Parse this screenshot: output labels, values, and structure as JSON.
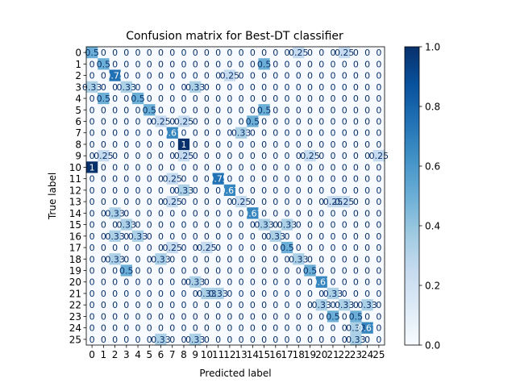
{
  "chart_data": {
    "type": "heatmap",
    "title": "Confusion matrix for Best-DT classifier",
    "xlabel": "Predicted label",
    "ylabel": "True label",
    "labels": [
      "0",
      "1",
      "2",
      "3",
      "4",
      "5",
      "6",
      "7",
      "8",
      "9",
      "10",
      "11",
      "12",
      "13",
      "14",
      "15",
      "16",
      "17",
      "18",
      "19",
      "20",
      "21",
      "22",
      "23",
      "24",
      "25"
    ],
    "colormap": "Blues",
    "colormap_low": "#f7fbff",
    "colormap_high": "#08306b",
    "vmin": 0.0,
    "vmax": 1.0,
    "colorbar_ticks": [
      "0.0",
      "0.2",
      "0.4",
      "0.6",
      "0.8",
      "1.0"
    ],
    "matrix": [
      [
        0.5,
        0,
        0,
        0,
        0,
        0,
        0,
        0,
        0,
        0,
        0,
        0,
        0,
        0,
        0,
        0,
        0,
        0,
        0.25,
        0,
        0,
        0,
        0.25,
        0,
        0,
        0
      ],
      [
        0,
        0.5,
        0,
        0,
        0,
        0,
        0,
        0,
        0,
        0,
        0,
        0,
        0,
        0,
        0,
        0.5,
        0,
        0,
        0,
        0,
        0,
        0,
        0,
        0,
        0,
        0
      ],
      [
        0,
        0,
        0.75,
        0,
        0,
        0,
        0,
        0,
        0,
        0,
        0,
        0,
        0.25,
        0,
        0,
        0,
        0,
        0,
        0,
        0,
        0,
        0,
        0,
        0,
        0,
        0
      ],
      [
        0.33,
        0,
        0,
        0.33,
        0,
        0,
        0,
        0,
        0,
        0.33,
        0,
        0,
        0,
        0,
        0,
        0,
        0,
        0,
        0,
        0,
        0,
        0,
        0,
        0,
        0,
        0
      ],
      [
        0,
        0.5,
        0,
        0,
        0.5,
        0,
        0,
        0,
        0,
        0,
        0,
        0,
        0,
        0,
        0,
        0,
        0,
        0,
        0,
        0,
        0,
        0,
        0,
        0,
        0,
        0
      ],
      [
        0,
        0,
        0,
        0,
        0,
        0.5,
        0,
        0,
        0,
        0,
        0,
        0,
        0,
        0,
        0,
        0.5,
        0,
        0,
        0,
        0,
        0,
        0,
        0,
        0,
        0,
        0
      ],
      [
        0,
        0,
        0,
        0,
        0,
        0,
        0.25,
        0,
        0.25,
        0,
        0,
        0,
        0,
        0,
        0.5,
        0,
        0,
        0,
        0,
        0,
        0,
        0,
        0,
        0,
        0,
        0
      ],
      [
        0,
        0,
        0,
        0,
        0,
        0,
        0,
        0.67,
        0,
        0,
        0,
        0,
        0,
        0.33,
        0,
        0,
        0,
        0,
        0,
        0,
        0,
        0,
        0,
        0,
        0,
        0
      ],
      [
        0,
        0,
        0,
        0,
        0,
        0,
        0,
        0,
        1,
        0,
        0,
        0,
        0,
        0,
        0,
        0,
        0,
        0,
        0,
        0,
        0,
        0,
        0,
        0,
        0,
        0
      ],
      [
        0,
        0.25,
        0,
        0,
        0,
        0,
        0,
        0,
        0.25,
        0,
        0,
        0,
        0,
        0,
        0,
        0,
        0,
        0,
        0,
        0.25,
        0,
        0,
        0,
        0,
        0,
        0.25
      ],
      [
        1,
        0,
        0,
        0,
        0,
        0,
        0,
        0,
        0,
        0,
        0,
        0,
        0,
        0,
        0,
        0,
        0,
        0,
        0,
        0,
        0,
        0,
        0,
        0,
        0,
        0
      ],
      [
        0,
        0,
        0,
        0,
        0,
        0,
        0,
        0.25,
        0,
        0,
        0,
        0.75,
        0,
        0,
        0,
        0,
        0,
        0,
        0,
        0,
        0,
        0,
        0,
        0,
        0,
        0
      ],
      [
        0,
        0,
        0,
        0,
        0,
        0,
        0,
        0,
        0.33,
        0,
        0,
        0,
        0.67,
        0,
        0,
        0,
        0,
        0,
        0,
        0,
        0,
        0,
        0,
        0,
        0,
        0
      ],
      [
        0,
        0,
        0,
        0,
        0,
        0,
        0,
        0.25,
        0,
        0,
        0,
        0,
        0,
        0.25,
        0,
        0,
        0,
        0,
        0,
        0,
        0,
        0.25,
        0.25,
        0,
        0,
        0
      ],
      [
        0,
        0,
        0.33,
        0,
        0,
        0,
        0,
        0,
        0,
        0,
        0,
        0,
        0,
        0,
        0.67,
        0,
        0,
        0,
        0,
        0,
        0,
        0,
        0,
        0,
        0,
        0
      ],
      [
        0,
        0,
        0,
        0.33,
        0,
        0,
        0,
        0,
        0,
        0,
        0,
        0,
        0,
        0,
        0,
        0.33,
        0,
        0.33,
        0,
        0,
        0,
        0,
        0,
        0,
        0,
        0
      ],
      [
        0,
        0,
        0.33,
        0,
        0.33,
        0,
        0,
        0,
        0,
        0,
        0,
        0,
        0,
        0,
        0,
        0,
        0.33,
        0,
        0,
        0,
        0,
        0,
        0,
        0,
        0,
        0
      ],
      [
        0,
        0,
        0,
        0,
        0,
        0,
        0,
        0.25,
        0,
        0,
        0.25,
        0,
        0,
        0,
        0,
        0,
        0,
        0.5,
        0,
        0,
        0,
        0,
        0,
        0,
        0,
        0
      ],
      [
        0,
        0,
        0.33,
        0,
        0,
        0,
        0.33,
        0,
        0,
        0,
        0,
        0,
        0,
        0,
        0,
        0,
        0,
        0,
        0.33,
        0,
        0,
        0,
        0,
        0,
        0,
        0
      ],
      [
        0,
        0,
        0,
        0.5,
        0,
        0,
        0,
        0,
        0,
        0,
        0,
        0,
        0,
        0,
        0,
        0,
        0,
        0,
        0,
        0.5,
        0,
        0,
        0,
        0,
        0,
        0
      ],
      [
        0,
        0,
        0,
        0,
        0,
        0,
        0,
        0,
        0,
        0.33,
        0,
        0,
        0,
        0,
        0,
        0,
        0,
        0,
        0,
        0,
        0.67,
        0,
        0,
        0,
        0,
        0
      ],
      [
        0,
        0,
        0,
        0,
        0,
        0,
        0,
        0,
        0,
        0,
        0.33,
        0.33,
        0,
        0,
        0,
        0,
        0,
        0,
        0,
        0,
        0,
        0.33,
        0,
        0,
        0,
        0
      ],
      [
        0,
        0,
        0,
        0,
        0,
        0,
        0,
        0,
        0,
        0,
        0,
        0,
        0,
        0,
        0,
        0,
        0,
        0,
        0,
        0,
        0.33,
        0,
        0.33,
        0,
        0.33,
        0
      ],
      [
        0,
        0,
        0,
        0,
        0,
        0,
        0,
        0,
        0,
        0,
        0,
        0,
        0,
        0,
        0,
        0,
        0,
        0,
        0,
        0,
        0,
        0.5,
        0,
        0.5,
        0,
        0
      ],
      [
        0,
        0,
        0,
        0,
        0,
        0,
        0,
        0,
        0,
        0,
        0,
        0,
        0,
        0,
        0,
        0,
        0,
        0,
        0,
        0,
        0,
        0,
        0,
        0.33,
        0.67,
        0
      ],
      [
        0,
        0,
        0,
        0,
        0,
        0,
        0.33,
        0,
        0,
        0.33,
        0,
        0,
        0,
        0,
        0,
        0,
        0,
        0,
        0,
        0,
        0,
        0,
        0,
        0.33,
        0,
        0
      ]
    ],
    "grid": false,
    "legend": "colorbar-right"
  }
}
